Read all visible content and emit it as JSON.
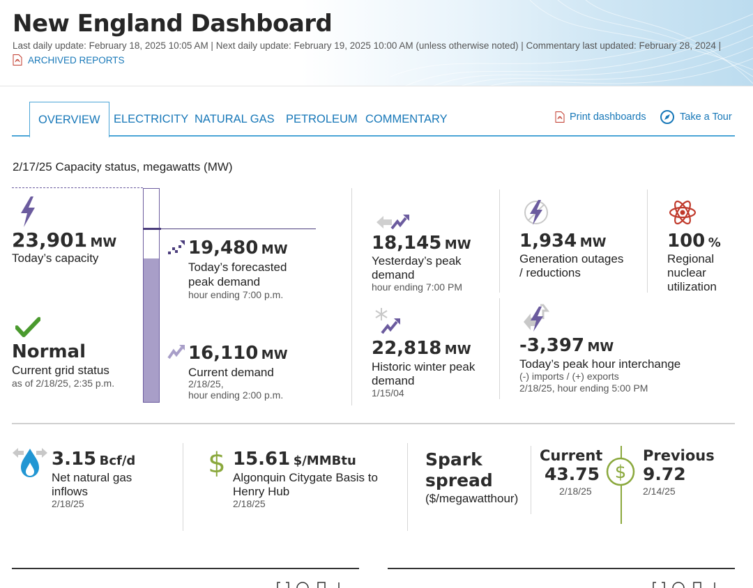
{
  "header": {
    "title": "New England Dashboard",
    "meta": "Last daily update: February 18, 2025 10:05 AM  |  Next daily update: February 19, 2025 10:00 AM (unless otherwise noted) |  Commentary last updated: February 28, 2024 |",
    "archived_label": "ARCHIVED REPORTS"
  },
  "tabs": {
    "items": [
      "OVERVIEW",
      "ELECTRICITY",
      "NATURAL GAS",
      "PETROLEUM",
      "COMMENTARY"
    ],
    "active": "OVERVIEW",
    "print_label": "Print dashboards",
    "tour_label": "Take a Tour"
  },
  "capacity": {
    "section_title": "2/17/25 Capacity status, megawatts (MW)",
    "todays_capacity": {
      "value": "23,901",
      "unit": "MW",
      "label": "Today’s capacity"
    },
    "grid_status": {
      "value": "Normal",
      "label": "Current grid status",
      "sub": "as of 2/18/25, 2:35 p.m."
    },
    "forecast_peak": {
      "value": "19,480",
      "unit": "MW",
      "label1": "Today’s forecasted",
      "label2": "peak demand",
      "sub": "hour ending 7:00 p.m."
    },
    "current_demand": {
      "value": "16,110",
      "unit": "MW",
      "label": "Current demand",
      "sub1": "2/18/25,",
      "sub2": "hour ending 2:00 p.m."
    },
    "bar_fill_fraction": 0.674,
    "forecast_marker_fraction": 0.815,
    "yesterday_peak": {
      "value": "18,145",
      "unit": "MW",
      "label1": "Yesterday’s peak",
      "label2": "demand",
      "sub": "hour ending 7:00 PM"
    },
    "historic_winter_peak": {
      "value": "22,818",
      "unit": "MW",
      "label1": "Historic winter peak",
      "label2": "demand",
      "sub": "1/15/04"
    },
    "generation_outages": {
      "value": "1,934",
      "unit": "MW",
      "label1": "Generation outages",
      "label2": "/ reductions"
    },
    "interchange": {
      "value": "-3,397",
      "unit": "MW",
      "label": "Today’s peak hour interchange",
      "sub1": "(-) imports / (+) exports",
      "sub2": "2/18/25, hour ending 5:00 PM"
    },
    "nuclear": {
      "value": "100",
      "unit": "%",
      "label1": "Regional",
      "label2": "nuclear",
      "label3": "utilization"
    }
  },
  "gas": {
    "inflows": {
      "value": "3.15",
      "unit": "Bcf/d",
      "label1": "Net natural gas",
      "label2": "inflows",
      "sub": "2/18/25"
    },
    "basis": {
      "value": "15.61",
      "unit": "$/MMBtu",
      "label1": "Algonquin Citygate Basis to",
      "label2": "Henry Hub",
      "sub": "2/18/25"
    },
    "spark": {
      "title1": "Spark",
      "title2": "spread",
      "unit": "($/megawatthour)",
      "current_label": "Current",
      "current_value": "43.75",
      "current_date": "2/18/25",
      "previous_label": "Previous",
      "previous_value": "9.72",
      "previous_date": "2/14/25"
    }
  },
  "colors": {
    "accent": "#1677b8",
    "purple": "#6b5b9e",
    "bar_fill": "#a89ec8",
    "green": "#4a9a2e",
    "olive": "#8aa83c",
    "red": "#c0392b"
  }
}
